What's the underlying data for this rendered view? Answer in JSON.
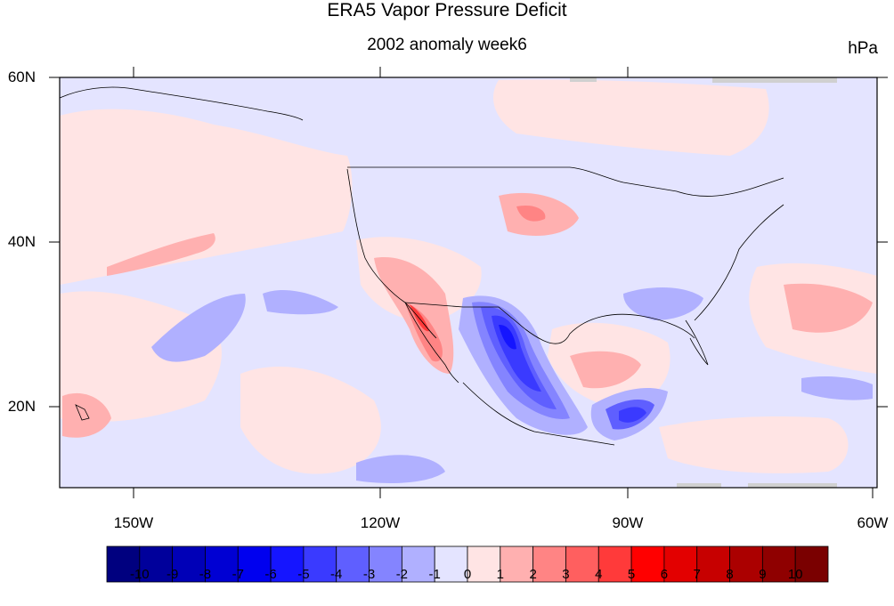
{
  "title": "ERA5 Vapor Pressure Deficit",
  "subtitle": "2002 anomaly week6",
  "units": "hPa",
  "y_ticks": [
    "60N",
    "40N",
    "20N"
  ],
  "x_ticks": [
    "150W",
    "120W",
    "90W",
    "60W"
  ],
  "map_extent": {
    "lon_min": -159,
    "lon_max": -60,
    "lat_min": 10,
    "lat_max": 60
  },
  "colorbar": {
    "labels": [
      "-10",
      "-9",
      "-8",
      "-7",
      "-6",
      "-5",
      "-4",
      "-3",
      "-2",
      "-1",
      "0",
      "1",
      "2",
      "3",
      "4",
      "5",
      "6",
      "7",
      "8",
      "9",
      "10"
    ],
    "colors": [
      "#00007f",
      "#00009b",
      "#0000b7",
      "#0000d3",
      "#0000ef",
      "#1515ff",
      "#3a3aff",
      "#5f5fff",
      "#8484ff",
      "#b0b0ff",
      "#e4e4ff",
      "#ffe4e4",
      "#ffb0b0",
      "#ff8484",
      "#ff5f5f",
      "#ff3a3a",
      "#ff0000",
      "#e30000",
      "#c70000",
      "#ab0000",
      "#8f0000",
      "#7a0000"
    ]
  },
  "fill_colors": {
    "neutral_neg": "#e4e4ff",
    "neutral_pos": "#ffe4e4",
    "neg1": "#b0b0ff",
    "neg2": "#8484ff",
    "neg3": "#5f5fff",
    "neg4": "#3a3aff",
    "neg5": "#1515ff",
    "pos1": "#ffb0b0",
    "pos2": "#ff8484",
    "pos3": "#ff5f5f",
    "pos4": "#ff3a3a",
    "missing": "#d0d0d0"
  }
}
